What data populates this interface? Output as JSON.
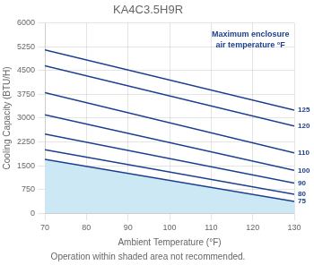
{
  "chart_data": {
    "type": "line",
    "title": "KA4C3.5H9R",
    "xlabel": "Ambient Temperature (°F)",
    "ylabel": "Cooling Capacity (BTU/H)",
    "footnote": "Operation within shaded area not recommended.",
    "annotation": "Maximum enclosure\nair temperature °F",
    "x": [
      70,
      130
    ],
    "series": [
      {
        "name": "125",
        "values": [
          5150,
          3250
        ]
      },
      {
        "name": "120",
        "values": [
          4650,
          2750
        ]
      },
      {
        "name": "110",
        "values": [
          3800,
          1900
        ]
      },
      {
        "name": "100",
        "values": [
          3100,
          1350
        ]
      },
      {
        "name": "90",
        "values": [
          2500,
          950
        ]
      },
      {
        "name": "80",
        "values": [
          2000,
          600
        ]
      },
      {
        "name": "75",
        "values": [
          1700,
          370
        ]
      }
    ],
    "color": "#1b3f8f",
    "shade_color": "#cde8f5",
    "xlim": [
      70,
      130
    ],
    "xticks": [
      70,
      80,
      90,
      100,
      110,
      120,
      130
    ],
    "ylim": [
      0,
      6000
    ],
    "yticks": [
      0,
      750,
      1500,
      2250,
      3000,
      3750,
      4500,
      5250,
      6000
    ],
    "grid": true
  }
}
